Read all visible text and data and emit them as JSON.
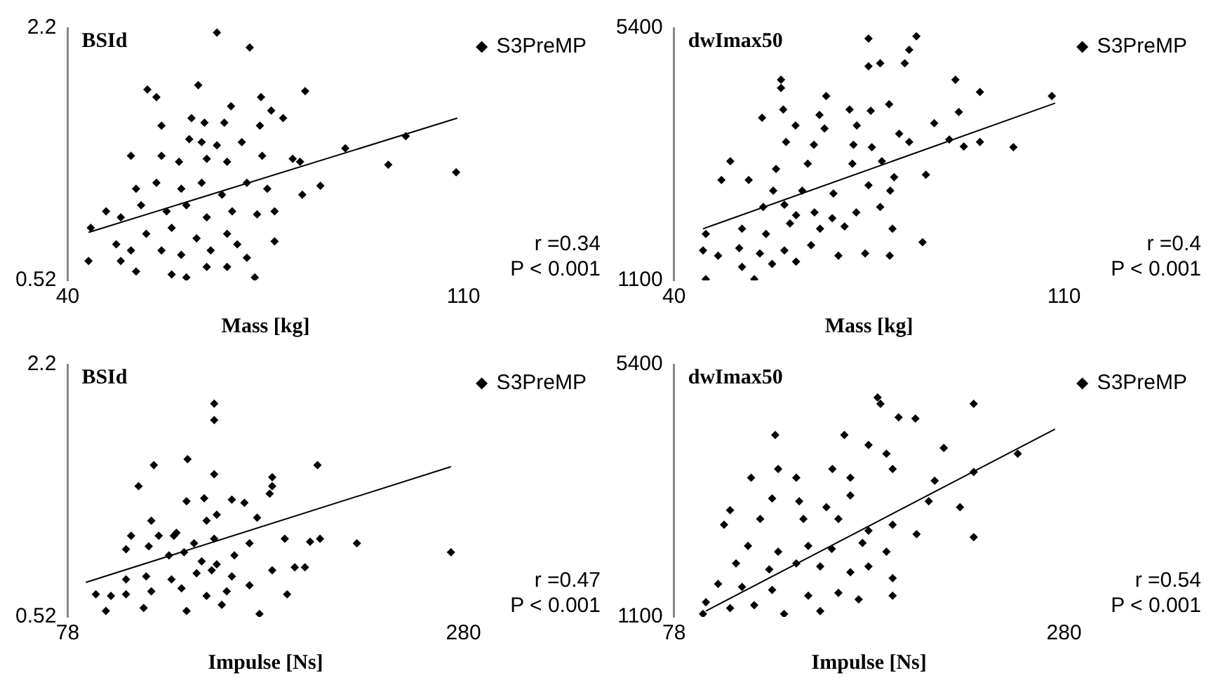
{
  "chart_data": [
    {
      "type": "scatter",
      "title": "BSId",
      "xlabel": "Mass [kg]",
      "xlim": [
        40,
        110
      ],
      "xticks": [
        40,
        110
      ],
      "ylim": [
        0.52,
        2.2
      ],
      "yticks": [
        0.52,
        2.2
      ],
      "grid": false,
      "legend": "top right",
      "annotations": [
        "r =0.34",
        "P < 0.001"
      ],
      "series": [
        {
          "name": "S3PreMP",
          "marker": "diamond",
          "color": "#000000",
          "x": [
            66.4,
            72.2,
            54.1,
            55.7,
            63.1,
            82.0,
            74.2,
            68.9,
            76.0,
            78.1,
            74.0,
            67.7,
            61.9,
            56.6,
            64.2,
            61.5,
            63.7,
            66.4,
            70.8,
            51.2,
            56.6,
            59.7,
            64.6,
            68.2,
            74.4,
            79.8,
            81.1,
            89.1,
            96.7,
            99.8,
            108.7,
            71.7,
            75.3,
            81.5,
            84.7,
            52.1,
            55.7,
            60.1,
            63.7,
            67.3,
            46.8,
            49.4,
            53.0,
            57.5,
            61.0,
            64.6,
            69.1,
            73.5,
            76.6,
            44.1,
            48.6,
            53.9,
            58.4,
            62.8,
            68.2,
            76.6,
            43.7,
            49.4,
            52.1,
            58.4,
            61.0,
            64.6,
            68.2,
            71.7,
            73.1,
            51.2,
            56.6,
            60.1,
            65.3,
            70.0
          ],
          "values": [
            2.17,
            2.07,
            1.79,
            1.74,
            1.82,
            1.78,
            1.74,
            1.68,
            1.65,
            1.6,
            1.55,
            1.57,
            1.6,
            1.55,
            1.57,
            1.46,
            1.44,
            1.42,
            1.44,
            1.35,
            1.35,
            1.31,
            1.33,
            1.31,
            1.35,
            1.33,
            1.31,
            1.4,
            1.29,
            1.48,
            1.24,
            1.17,
            1.13,
            1.09,
            1.15,
            1.13,
            1.17,
            1.13,
            1.17,
            1.09,
            0.98,
            0.94,
            1.02,
            0.98,
            1.02,
            0.94,
            0.98,
            0.96,
            0.98,
            0.87,
            0.76,
            0.83,
            0.87,
            0.8,
            0.83,
            0.78,
            0.65,
            0.65,
            0.58,
            0.56,
            0.54,
            0.61,
            0.61,
            0.67,
            0.54,
            0.72,
            0.72,
            0.69,
            0.72,
            0.76
          ]
        },
        {
          "type": "line",
          "marker": "none",
          "color": "#000000",
          "x": [
            43.7,
            108.9
          ],
          "values": [
            0.84,
            1.6
          ]
        }
      ]
    },
    {
      "type": "scatter",
      "title": "dwImax50",
      "xlabel": "Mass [kg]",
      "xlim": [
        40,
        110
      ],
      "xticks": [
        40,
        110
      ],
      "ylim": [
        1100,
        5400
      ],
      "yticks": [
        1100,
        5400
      ],
      "grid": false,
      "legend": "top right",
      "annotations": [
        "r =0.4",
        "P < 0.001"
      ],
      "series": [
        {
          "name": "S3PreMP",
          "marker": "diamond",
          "color": "#000000",
          "x": [
            83.5,
            82.2,
            74.9,
            74.9,
            77.0,
            81.4,
            59.2,
            59.2,
            67.3,
            90.5,
            94.9,
            107.8,
            91.1,
            86.7,
            78.6,
            75.3,
            71.5,
            66.1,
            59.6,
            55.8,
            61.8,
            67.0,
            72.8,
            80.4,
            60.1,
            65.1,
            72.2,
            75.5,
            82.2,
            89.4,
            94.9,
            100.9,
            92.0,
            50.1,
            48.5,
            53.4,
            58.3,
            64.0,
            72.0,
            77.3,
            85.2,
            79.5,
            57.8,
            63.0,
            68.6,
            74.9,
            78.8,
            56.0,
            59.8,
            61.9,
            65.2,
            68.4,
            72.7,
            77.0,
            52.2,
            56.5,
            60.8,
            66.2,
            70.6,
            79.2,
            45.7,
            45.2,
            47.9,
            51.7,
            55.4,
            59.8,
            64.6,
            69.5,
            74.3,
            78.7,
            84.6,
            52.2,
            57.6,
            61.9,
            45.7,
            54.4
          ],
          "values": [
            5260,
            5030,
            5220,
            4750,
            4800,
            4800,
            4520,
            4380,
            4240,
            4520,
            4310,
            4240,
            3970,
            3780,
            4100,
            3990,
            4010,
            3920,
            4010,
            3870,
            3740,
            3690,
            3740,
            3600,
            3460,
            3410,
            3410,
            3370,
            3460,
            3500,
            3460,
            3370,
            3380,
            3130,
            2810,
            2810,
            3000,
            3090,
            3090,
            3130,
            2900,
            2860,
            2630,
            2630,
            2580,
            2720,
            2630,
            2350,
            2390,
            2210,
            2260,
            2160,
            2260,
            2350,
            1980,
            1890,
            2070,
            1980,
            2020,
            1980,
            1890,
            1610,
            1520,
            1650,
            1560,
            1610,
            1700,
            1520,
            1560,
            1520,
            1750,
            1330,
            1380,
            1420,
            1120,
            1120
          ]
        },
        {
          "type": "line",
          "marker": "none",
          "color": "#000000",
          "x": [
            45.2,
            108.4
          ],
          "values": [
            1980,
            4120
          ]
        }
      ]
    },
    {
      "type": "scatter",
      "title": "BSId",
      "xlabel": "Impulse [Ns]",
      "xlim": [
        78,
        280
      ],
      "xticks": [
        78,
        280
      ],
      "ylim": [
        0.52,
        2.2
      ],
      "yticks": [
        0.52,
        2.2
      ],
      "grid": false,
      "legend": "top right",
      "annotations": [
        "r =0.47",
        "P < 0.001"
      ],
      "series": [
        {
          "name": "S3PreMP",
          "marker": "diamond",
          "color": "#000000",
          "x": [
            152.8,
            152.8,
            122.0,
            139.2,
            152.8,
            182.4,
            182.4,
            205.5,
            114.2,
            138.7,
            147.7,
            161.8,
            168.2,
            181.1,
            120.7,
            133.5,
            148.9,
            154.1,
            174.7,
            110.4,
            124.5,
            132.2,
            142.5,
            152.8,
            170.8,
            188.8,
            201.7,
            206.8,
            225.6,
            273.6,
            107.8,
            119.4,
            129.7,
            137.4,
            146.4,
            154.1,
            163.1,
            182.4,
            193.9,
            199.1,
            107.8,
            118.1,
            131.0,
            143.8,
            151.5,
            161.8,
            170.8,
            190.0,
            92.4,
            100.1,
            107.8,
            120.7,
            136.1,
            148.9,
            159.2,
            175.9,
            97.5,
            116.8,
            138.7,
            156.7
          ],
          "values": [
            1.94,
            1.83,
            1.53,
            1.57,
            1.47,
            1.45,
            1.39,
            1.53,
            1.39,
            1.29,
            1.31,
            1.3,
            1.28,
            1.34,
            1.16,
            1.08,
            1.16,
            1.2,
            1.18,
            1.06,
            1.06,
            1.06,
            1.01,
            1.04,
            1.01,
            1.04,
            1.02,
            1.04,
            1.01,
            0.95,
            0.97,
            0.99,
            0.93,
            0.95,
            0.89,
            0.87,
            0.93,
            0.83,
            0.85,
            0.85,
            0.77,
            0.79,
            0.77,
            0.81,
            0.83,
            0.79,
            0.73,
            0.67,
            0.67,
            0.66,
            0.67,
            0.69,
            0.71,
            0.66,
            0.69,
            0.54,
            0.56,
            0.58,
            0.56,
            0.6
          ]
        },
        {
          "type": "line",
          "marker": "none",
          "color": "#000000",
          "x": [
            87.3,
            273.6
          ],
          "values": [
            0.75,
            1.52
          ]
        }
      ]
    },
    {
      "type": "scatter",
      "title": "dwImax50",
      "xlabel": "Impulse [Ns]",
      "xlim": [
        78,
        280
      ],
      "xticks": [
        78,
        280
      ],
      "ylim": [
        1100,
        5400
      ],
      "yticks": [
        1100,
        5400
      ],
      "grid": false,
      "legend": "top right",
      "annotations": [
        "r =0.54",
        "P < 0.001"
      ],
      "series": [
        {
          "name": "S3PreMP",
          "marker": "diamond",
          "color": "#000000",
          "x": [
            183.4,
            184.9,
            233.2,
            194.3,
            203.0,
            130.4,
            166.2,
            178.7,
            188.0,
            217.7,
            256.0,
            117.9,
            131.9,
            141.3,
            160.0,
            169.3,
            191.2,
            213.0,
            233.2,
            128.8,
            142.8,
            156.9,
            169.3,
            107.0,
            103.9,
            122.6,
            145.0,
            163.1,
            178.7,
            191.2,
            209.9,
            226.1,
            203.6,
            233.2,
            116.3,
            131.9,
            147.5,
            159.7,
            175.6,
            188.0,
            110.1,
            127.3,
            141.3,
            153.7,
            169.3,
            178.7,
            191.2,
            100.8,
            113.2,
            128.8,
            147.5,
            163.1,
            173.6,
            191.2,
            94.5,
            107.0,
            119.5,
            135.0,
            153.7,
            93.0
          ],
          "values": [
            4840,
            4730,
            4730,
            4500,
            4480,
            4200,
            4200,
            4030,
            3880,
            3980,
            3880,
            3470,
            3620,
            3470,
            3620,
            3470,
            3620,
            3420,
            3570,
            3120,
            3070,
            2970,
            3170,
            2920,
            2670,
            2770,
            2770,
            2770,
            2570,
            2670,
            3070,
            2970,
            2510,
            2460,
            2310,
            2210,
            2310,
            2260,
            2360,
            2210,
            2010,
            1910,
            2010,
            1960,
            1860,
            1960,
            1760,
            1660,
            1610,
            1560,
            1460,
            1510,
            1400,
            1460,
            1350,
            1250,
            1300,
            1150,
            1200,
            1150
          ]
        },
        {
          "type": "line",
          "marker": "none",
          "color": "#000000",
          "x": [
            94.5,
            275.3
          ],
          "values": [
            1200,
            4300
          ]
        }
      ]
    }
  ]
}
